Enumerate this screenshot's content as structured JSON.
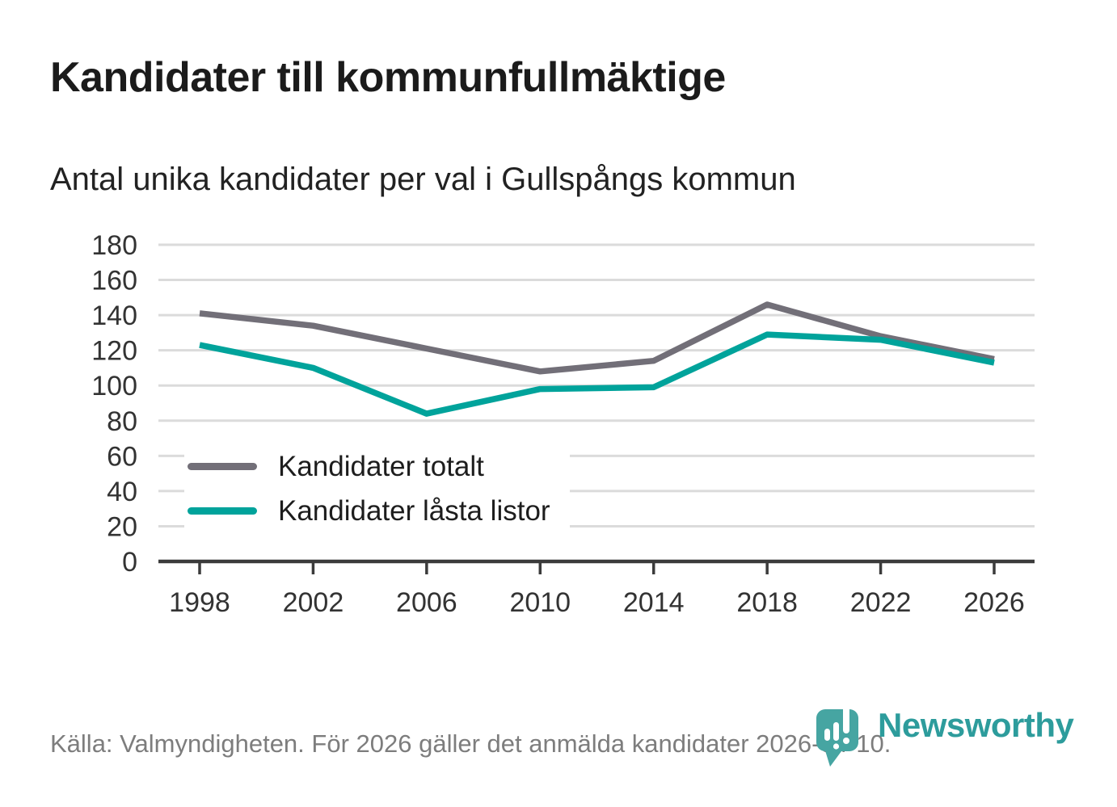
{
  "header": {
    "title": "Kandidater till kommunfullmäktige",
    "subtitle": "Antal unika kandidater per val i Gullspångs kommun"
  },
  "chart_data": {
    "type": "line",
    "x": [
      1998,
      2002,
      2006,
      2010,
      2014,
      2018,
      2022,
      2026
    ],
    "series": [
      {
        "name": "Kandidater totalt",
        "color": "#726F78",
        "values": [
          141,
          134,
          121,
          108,
          114,
          146,
          128,
          115
        ]
      },
      {
        "name": "Kandidater låsta listor",
        "color": "#00A39B",
        "values": [
          123,
          110,
          84,
          98,
          99,
          129,
          126,
          113
        ]
      }
    ],
    "title": "Kandidater till kommunfullmäktige",
    "subtitle": "Antal unika kandidater per val i Gullspångs kommun",
    "xlabel": "",
    "ylabel": "",
    "ylim": [
      0,
      180
    ],
    "ytick_step": 20,
    "grid": true,
    "legend_position": "inside-bottom-left",
    "styles": {
      "grid_color": "#DBDBDB",
      "axis_color": "#3B3B3B",
      "tick_label_color": "#333333",
      "line_width": 7.5
    }
  },
  "footer": {
    "source": "Källa: Valmyndigheten. För 2026 gäller det anmälda kandidater 2026-04-10."
  },
  "branding": {
    "wordmark": "Newsworthy",
    "wordmark_color": "#2D9C9C",
    "icon": "newsworthy-chart-bubble-icon",
    "icon_color": "#46A5A2",
    "icon_glyph_color": "#FFFFFF"
  }
}
